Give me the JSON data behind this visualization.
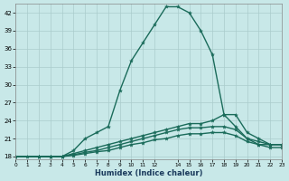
{
  "background_color": "#c8e8e8",
  "grid_color": "#aacccc",
  "line_color": "#1a6b5a",
  "xlabel": "Humidex (Indice chaleur)",
  "xlim": [
    0,
    23
  ],
  "ylim": [
    17.5,
    43.5
  ],
  "yticks": [
    18,
    21,
    24,
    27,
    30,
    33,
    36,
    39,
    42
  ],
  "xtick_positions": [
    0,
    1,
    2,
    3,
    4,
    5,
    6,
    7,
    8,
    9,
    10,
    11,
    12,
    14,
    15,
    16,
    17,
    18,
    19,
    20,
    21,
    22,
    23
  ],
  "xtick_labels": [
    "0",
    "1",
    "2",
    "3",
    "4",
    "5",
    "6",
    "7",
    "8",
    "9",
    "10",
    "11",
    "12",
    "14",
    "15",
    "16",
    "17",
    "18",
    "19",
    "20",
    "21",
    "22",
    "23"
  ],
  "series": [
    {
      "x": [
        0,
        1,
        2,
        3,
        4,
        5,
        6,
        7,
        8,
        9,
        10,
        11,
        12,
        13,
        14,
        15,
        16,
        17,
        18,
        19,
        20,
        21,
        22,
        23
      ],
      "y": [
        18,
        18,
        18,
        18,
        18,
        19,
        21,
        22,
        23,
        29,
        34,
        37,
        40,
        43,
        43,
        42,
        39,
        35,
        25,
        23,
        21,
        20,
        20,
        20
      ],
      "linestyle": "-",
      "linewidth": 1.0
    },
    {
      "x": [
        0,
        2,
        3,
        4,
        5,
        6,
        7,
        8,
        9,
        10,
        11,
        12,
        13,
        14,
        15,
        16,
        17,
        18,
        19,
        20,
        21,
        22,
        23
      ],
      "y": [
        18,
        18,
        18,
        18,
        18.5,
        19,
        19.5,
        20,
        20.5,
        21,
        21.5,
        22,
        22.5,
        23,
        23.5,
        23.5,
        24,
        25,
        25,
        22,
        21,
        20,
        20
      ],
      "linestyle": "-",
      "linewidth": 1.0
    },
    {
      "x": [
        0,
        2,
        3,
        4,
        5,
        6,
        7,
        8,
        9,
        10,
        11,
        12,
        13,
        14,
        15,
        16,
        17,
        18,
        19,
        20,
        21,
        22,
        23
      ],
      "y": [
        18,
        18,
        18,
        18,
        18.3,
        18.7,
        19,
        19.5,
        20,
        20.5,
        21,
        21.5,
        22,
        22.5,
        22.8,
        22.8,
        23,
        23,
        22.5,
        21,
        20.5,
        20,
        20
      ],
      "linestyle": "-",
      "linewidth": 1.0
    },
    {
      "x": [
        0,
        2,
        3,
        4,
        5,
        6,
        7,
        8,
        9,
        10,
        11,
        12,
        13,
        14,
        15,
        16,
        17,
        18,
        19,
        20,
        21,
        22,
        23
      ],
      "y": [
        18,
        18,
        18,
        18,
        18.2,
        18.5,
        18.8,
        19,
        19.5,
        20,
        20.3,
        20.8,
        21,
        21.5,
        21.8,
        21.8,
        22,
        22,
        21.5,
        20.5,
        20,
        19.5,
        19.5
      ],
      "linestyle": "-",
      "linewidth": 1.0
    }
  ]
}
